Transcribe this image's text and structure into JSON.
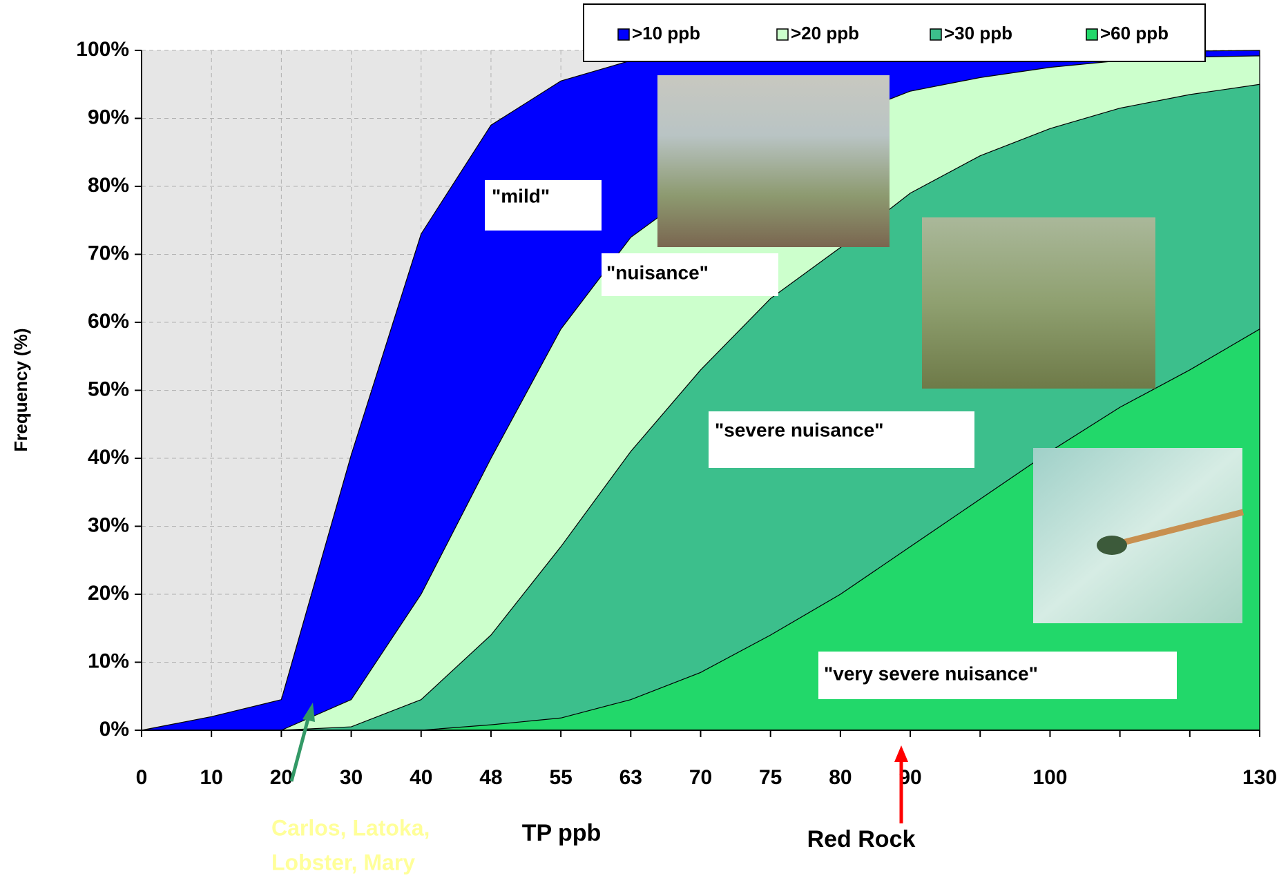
{
  "chart_data": {
    "type": "area",
    "x_label": "TP ppb",
    "y_label": "Frequency (%)",
    "categories": [
      "0",
      "10",
      "20",
      "30",
      "40",
      "48",
      "55",
      "63",
      "70",
      "75",
      "80",
      "90",
      null,
      "100",
      null,
      null,
      "130"
    ],
    "series": [
      {
        "name": ">10 ppb",
        "color": "#0000ff",
        "values": [
          0,
          2,
          4.5,
          40.5,
          73,
          89,
          95.5,
          98.5,
          99,
          99.3,
          99.5,
          99.6,
          99.7,
          99.8,
          99.9,
          99.9,
          100
        ]
      },
      {
        "name": ">20 ppb",
        "color": "#ccffcc",
        "values": [
          null,
          null,
          0,
          4.5,
          20,
          40,
          59,
          72.5,
          80,
          86,
          90,
          94,
          96,
          97.5,
          98.5,
          99,
          99.2
        ]
      },
      {
        "name": ">30 ppb",
        "color": "#3cbf8c",
        "values": [
          null,
          null,
          0,
          0.5,
          4.5,
          14,
          27,
          41,
          53,
          63.5,
          71,
          79,
          84.5,
          88.5,
          91.5,
          93.5,
          95
        ]
      },
      {
        "name": ">60 ppb",
        "color": "#22d86a",
        "values": [
          null,
          null,
          null,
          null,
          0,
          0.8,
          1.8,
          4.5,
          8.5,
          14,
          20,
          27,
          34,
          41,
          47.5,
          53,
          59
        ]
      }
    ],
    "ylim": [
      0,
      100
    ],
    "yticks": [
      {
        "value": 0,
        "label": "0%"
      },
      {
        "value": 10,
        "label": "10%"
      },
      {
        "value": 20,
        "label": "20%"
      },
      {
        "value": 30,
        "label": "30%"
      },
      {
        "value": 40,
        "label": "40%"
      },
      {
        "value": 50,
        "label": "50%"
      },
      {
        "value": 60,
        "label": "60%"
      },
      {
        "value": 70,
        "label": "70%"
      },
      {
        "value": 80,
        "label": "80%"
      },
      {
        "value": 90,
        "label": "90%"
      },
      {
        "value": 100,
        "label": "100%"
      }
    ],
    "grid": true,
    "legend": "top",
    "annotations": [
      "\"mild\"",
      "\"nuisance\"",
      "\"severe nuisance\"",
      "\"very  severe nuisance\"",
      "Carlos, Latoka,",
      "Lobster, Mary",
      "Red Rock"
    ]
  }
}
